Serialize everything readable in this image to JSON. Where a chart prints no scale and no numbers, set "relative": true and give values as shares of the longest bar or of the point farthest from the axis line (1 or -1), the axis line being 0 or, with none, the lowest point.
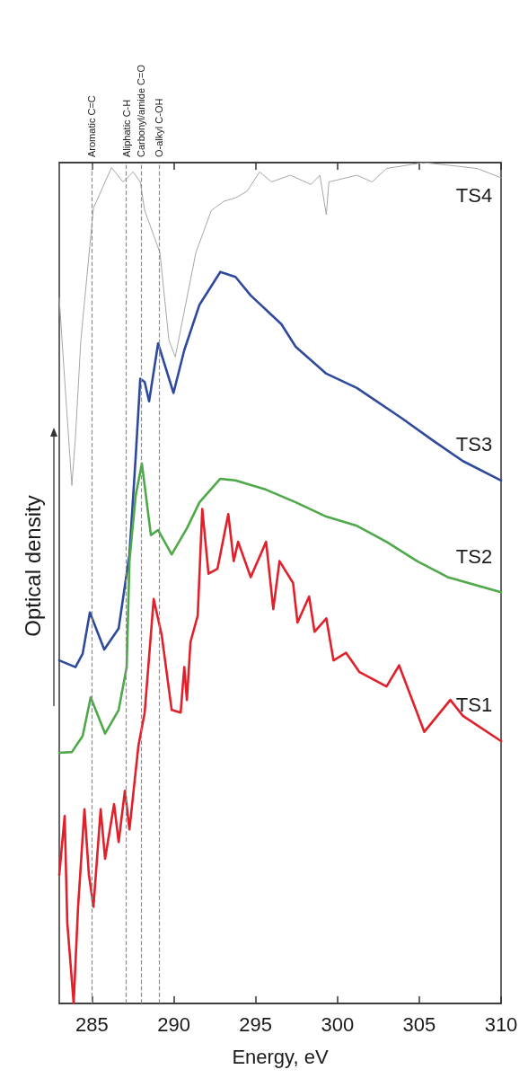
{
  "chart_data": {
    "type": "line",
    "xlabel": "Energy, eV",
    "ylabel": "Optical density",
    "relative": true,
    "xlim": [
      283,
      310
    ],
    "xticks": [
      285,
      290,
      295,
      300,
      305,
      310
    ],
    "tick_labels": "x",
    "grid": false,
    "legend": false,
    "marker": "none",
    "line_style": "solid",
    "ref_lines": [
      {
        "axis": "x",
        "value": 285,
        "label": "Aromatic C=C",
        "color": "#8c8c8c",
        "line_style": "dashed"
      },
      {
        "axis": "x",
        "value": 287.1,
        "label": "Aliphatic C-H",
        "color": "#8c8c8c",
        "line_style": "dashed"
      },
      {
        "axis": "x",
        "value": 288,
        "label": "Carbonyl/amide C=O",
        "color": "#8c8c8c",
        "line_style": "dashed"
      },
      {
        "axis": "x",
        "value": 289.1,
        "label": "O-alkyl C-OH",
        "color": "#8c8c8c",
        "line_style": "dashed"
      }
    ],
    "series": [
      {
        "name": "TS4",
        "color": "#a6a6a6",
        "x": [
          283,
          283.33,
          283.77,
          283.99,
          284.32,
          285.09,
          286.19,
          286.9,
          287.51,
          287.95,
          288.22,
          289.15,
          289.7,
          290.09,
          291.35,
          292.29,
          293.05,
          293.77,
          294.48,
          295.25,
          295.97,
          297.12,
          298.38,
          298.93,
          299.32,
          299.48,
          301.19,
          302.12,
          303,
          305.25,
          306.74,
          308.55,
          310
        ],
        "values": [
          0.839,
          0.742,
          0.616,
          0.674,
          0.789,
          0.946,
          0.994,
          0.977,
          0.989,
          0.977,
          0.943,
          0.893,
          0.789,
          0.769,
          0.893,
          0.943,
          0.954,
          0.958,
          0.966,
          0.989,
          0.977,
          0.985,
          0.974,
          0.985,
          0.938,
          0.977,
          0.985,
          0.977,
          0.993,
          1.0,
          0.997,
          0.993,
          0.982
        ]
      },
      {
        "name": "TS3",
        "color": "#2f4a9c",
        "x": [
          283,
          283.99,
          284.43,
          284.87,
          285.75,
          286.63,
          287.29,
          287.67,
          287.95,
          288.22,
          288.49,
          289.04,
          289.98,
          290.64,
          291.57,
          292.84,
          293.77,
          294.7,
          296.57,
          297.45,
          299.32,
          301.19,
          303.93,
          305.8,
          307.67,
          310
        ],
        "values": [
          0.408,
          0.4,
          0.416,
          0.465,
          0.421,
          0.446,
          0.534,
          0.65,
          0.743,
          0.739,
          0.716,
          0.785,
          0.726,
          0.777,
          0.831,
          0.87,
          0.864,
          0.842,
          0.808,
          0.781,
          0.749,
          0.732,
          0.696,
          0.67,
          0.645,
          0.622
        ]
      },
      {
        "name": "TS2",
        "color": "#4fa84a",
        "x": [
          283,
          283.77,
          284.43,
          284.92,
          285.8,
          286.63,
          287.12,
          287.29,
          287.67,
          288.05,
          288.6,
          289.04,
          289.87,
          290.8,
          291.57,
          292.84,
          293.77,
          295.64,
          297.45,
          299.32,
          301.19,
          303,
          304.87,
          306.74,
          310
        ],
        "values": [
          0.298,
          0.299,
          0.318,
          0.364,
          0.321,
          0.349,
          0.4,
          0.526,
          0.604,
          0.642,
          0.557,
          0.563,
          0.534,
          0.565,
          0.596,
          0.624,
          0.622,
          0.611,
          0.596,
          0.579,
          0.568,
          0.549,
          0.526,
          0.507,
          0.489
        ]
      },
      {
        "name": "TS1",
        "color": "#e0202a",
        "x": [
          283,
          283.33,
          283.49,
          283.88,
          284.15,
          284.54,
          284.81,
          285.09,
          285.53,
          285.8,
          286.35,
          286.63,
          287.01,
          287.29,
          287.84,
          288.22,
          288.77,
          289.26,
          289.87,
          290.42,
          290.64,
          290.8,
          291.02,
          291.46,
          291.74,
          292.12,
          292.67,
          293.33,
          293.66,
          293.93,
          294.7,
          295.64,
          296.08,
          296.46,
          297.29,
          297.56,
          298.27,
          298.6,
          299.32,
          299.76,
          300.53,
          301.35,
          303,
          303.77,
          305.31,
          306.9,
          307.67,
          310
        ],
        "values": [
          0.153,
          0.223,
          0.096,
          0.0,
          0.115,
          0.231,
          0.153,
          0.115,
          0.231,
          0.172,
          0.237,
          0.192,
          0.253,
          0.207,
          0.307,
          0.346,
          0.481,
          0.438,
          0.349,
          0.346,
          0.4,
          0.361,
          0.43,
          0.461,
          0.588,
          0.511,
          0.517,
          0.582,
          0.526,
          0.549,
          0.507,
          0.549,
          0.469,
          0.526,
          0.5,
          0.453,
          0.484,
          0.442,
          0.458,
          0.408,
          0.417,
          0.394,
          0.377,
          0.402,
          0.323,
          0.361,
          0.342,
          0.312
        ]
      }
    ]
  }
}
